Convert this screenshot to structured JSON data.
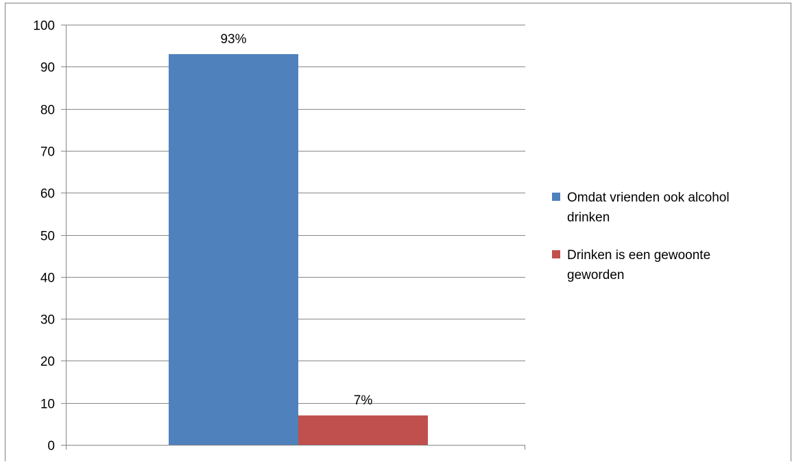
{
  "chart_data": {
    "type": "bar",
    "title": "",
    "xlabel": "",
    "ylabel": "",
    "ylim": [
      0,
      100
    ],
    "yticks": [
      0,
      10,
      20,
      30,
      40,
      50,
      60,
      70,
      80,
      90,
      100
    ],
    "grid": true,
    "legend_position": "right",
    "series": [
      {
        "name": "Omdat vrienden ook alcohol drinken",
        "legend_lines": [
          "Omdat vrienden ook alcohol",
          "drinken"
        ],
        "value": 93,
        "data_label": "93%",
        "color": "#4f81bd"
      },
      {
        "name": "Drinken is een gewoonte geworden",
        "legend_lines": [
          "Drinken is een gewoonte",
          "geworden"
        ],
        "value": 7,
        "data_label": "7%",
        "color": "#c0504d"
      }
    ]
  }
}
